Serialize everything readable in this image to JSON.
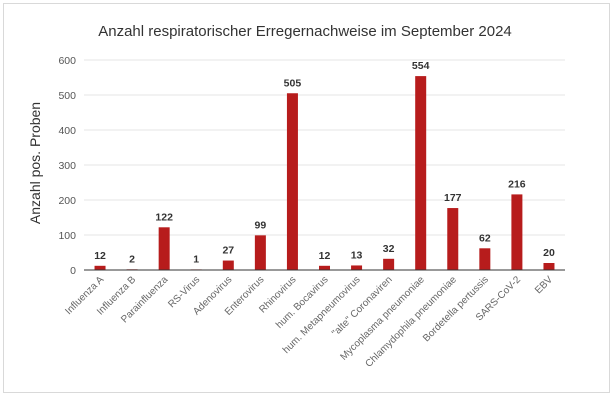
{
  "chart_data": {
    "type": "bar",
    "title": "Anzahl respiratorischer Erregernachweise im September 2024",
    "xlabel": "",
    "ylabel": "Anzahl pos. Proben",
    "ylim": [
      0,
      600
    ],
    "yticks": [
      0,
      100,
      200,
      300,
      400,
      500,
      600
    ],
    "grid": true,
    "bar_color": "#b71c1c",
    "categories": [
      "Influenza A",
      "Influenza B",
      "Parainfluenza",
      "RS-Virus",
      "Adenovirus",
      "Enterovirus",
      "Rhinovirus",
      "hum. Bocavirus",
      "hum. Metapneumovirus",
      "\"alte\" Coronaviren",
      "Mycoplasma pneumoniae",
      "Chlamydophila pneumoniae",
      "Bordetella pertussis",
      "SARS-CoV-2",
      "EBV"
    ],
    "values": [
      12,
      2,
      122,
      1,
      27,
      99,
      505,
      12,
      13,
      32,
      554,
      177,
      62,
      216,
      20
    ]
  }
}
